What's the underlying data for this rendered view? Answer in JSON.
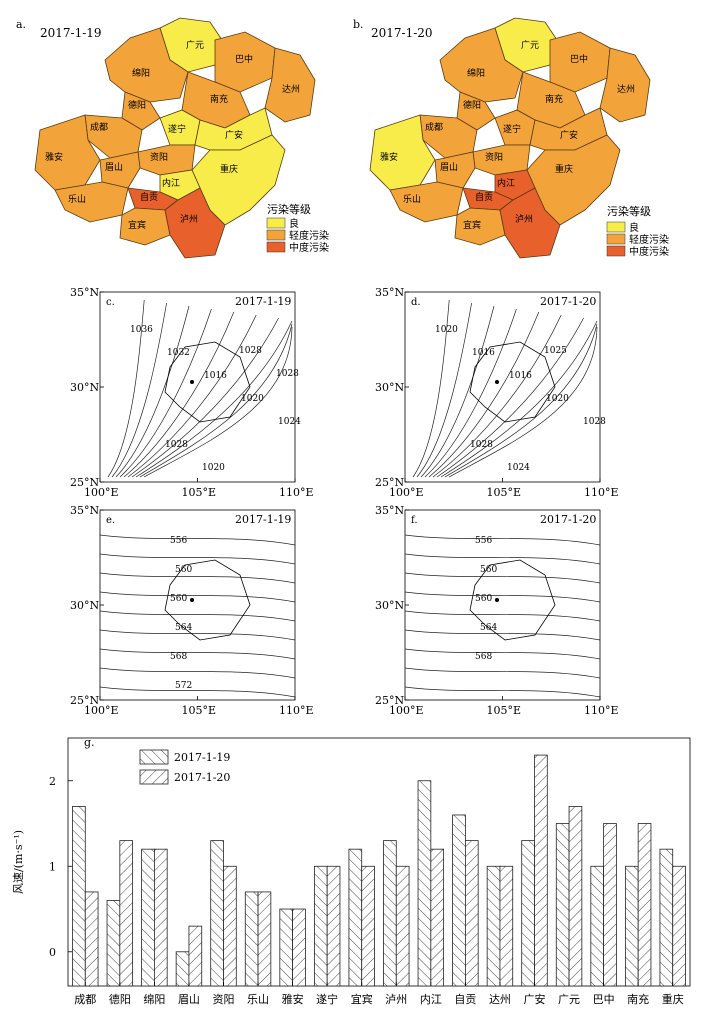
{
  "panel_a": {
    "label": "a.",
    "date": "2017-1-19",
    "cities": [
      {
        "name": "广元",
        "level": "良"
      },
      {
        "name": "巴中",
        "level": "轻度污染"
      },
      {
        "name": "绵阳",
        "level": "轻度污染"
      },
      {
        "name": "达州",
        "level": "轻度污染"
      },
      {
        "name": "南充",
        "level": "轻度污染"
      },
      {
        "name": "德阳",
        "level": "轻度污染"
      },
      {
        "name": "遂宁",
        "level": "良"
      },
      {
        "name": "成都",
        "level": "轻度污染"
      },
      {
        "name": "广安",
        "level": "良"
      },
      {
        "name": "资阳",
        "level": "轻度污染"
      },
      {
        "name": "雅安",
        "level": "轻度污染"
      },
      {
        "name": "眉山",
        "level": "轻度污染"
      },
      {
        "name": "重庆",
        "level": "良"
      },
      {
        "name": "内江",
        "level": "良"
      },
      {
        "name": "乐山",
        "level": "轻度污染"
      },
      {
        "name": "自贡",
        "level": "中度污染"
      },
      {
        "name": "宜宾",
        "level": "轻度污染"
      },
      {
        "name": "泸州",
        "level": "中度污染"
      }
    ]
  },
  "panel_b": {
    "label": "b.",
    "date": "2017-1-20",
    "cities": [
      {
        "name": "广元",
        "level": "良"
      },
      {
        "name": "巴中",
        "level": "轻度污染"
      },
      {
        "name": "绵阳",
        "level": "轻度污染"
      },
      {
        "name": "达州",
        "level": "轻度污染"
      },
      {
        "name": "南充",
        "level": "轻度污染"
      },
      {
        "name": "德阳",
        "level": "轻度污染"
      },
      {
        "name": "遂宁",
        "level": "轻度污染"
      },
      {
        "name": "成都",
        "level": "轻度污染"
      },
      {
        "name": "广安",
        "level": "轻度污染"
      },
      {
        "name": "资阳",
        "level": "轻度污染"
      },
      {
        "name": "雅安",
        "level": "良"
      },
      {
        "name": "眉山",
        "level": "轻度污染"
      },
      {
        "name": "重庆",
        "level": "轻度污染"
      },
      {
        "name": "内江",
        "level": "中度污染"
      },
      {
        "name": "乐山",
        "level": "轻度污染"
      },
      {
        "name": "自贡",
        "level": "中度污染"
      },
      {
        "name": "宜宾",
        "level": "轻度污染"
      },
      {
        "name": "泸州",
        "level": "中度污染"
      }
    ]
  },
  "map_legend": {
    "title": "污染等级",
    "items": [
      {
        "label": "良",
        "color": "#f7ec4a"
      },
      {
        "label": "轻度污染",
        "color": "#f2a43a"
      },
      {
        "label": "中度污染",
        "color": "#e8602c"
      }
    ]
  },
  "contour_panels": [
    {
      "label": "c.",
      "date": "2017-1-19",
      "contour_labels": [
        "1036",
        "1032",
        "1016",
        "1020",
        "1024",
        "1028",
        "1020",
        "1028",
        "1028"
      ]
    },
    {
      "label": "d.",
      "date": "2017-1-20",
      "contour_labels": [
        "1020",
        "1016",
        "1016",
        "1020",
        "1028",
        "1028",
        "1024",
        "1025"
      ]
    },
    {
      "label": "e.",
      "date": "2017-1-19",
      "contour_labels": [
        "556",
        "560",
        "560",
        "564",
        "568",
        "572"
      ]
    },
    {
      "label": "f.",
      "date": "2017-1-20",
      "contour_labels": [
        "556",
        "560",
        "560",
        "564",
        "568"
      ]
    }
  ],
  "contour_axes": {
    "y_ticks": [
      "35°N",
      "30°N",
      "25°N"
    ],
    "x_ticks": [
      "100°E",
      "105°E",
      "110°E"
    ]
  },
  "chart_data": {
    "type": "bar",
    "label": "g.",
    "ylabel": "风速/(m·s⁻¹)",
    "ylim": [
      -0.4,
      2.5
    ],
    "yticks": [
      0,
      1,
      2
    ],
    "categories": [
      "成都",
      "德阳",
      "绵阳",
      "眉山",
      "资阳",
      "乐山",
      "雅安",
      "遂宁",
      "宜宾",
      "泸州",
      "内江",
      "自贡",
      "达州",
      "广安",
      "广元",
      "巴中",
      "南充",
      "重庆"
    ],
    "series": [
      {
        "name": "2017-1-19",
        "values": [
          1.7,
          0.6,
          1.2,
          0.0,
          1.3,
          0.7,
          0.5,
          1.0,
          1.2,
          1.3,
          2.0,
          1.6,
          1.0,
          1.3,
          1.5,
          1.0,
          1.0,
          1.2
        ]
      },
      {
        "name": "2017-1-20",
        "values": [
          0.7,
          1.3,
          1.2,
          0.3,
          1.0,
          0.7,
          0.5,
          1.0,
          1.0,
          1.0,
          1.2,
          1.3,
          1.0,
          2.3,
          1.7,
          1.5,
          1.5,
          1.0
        ]
      }
    ]
  }
}
